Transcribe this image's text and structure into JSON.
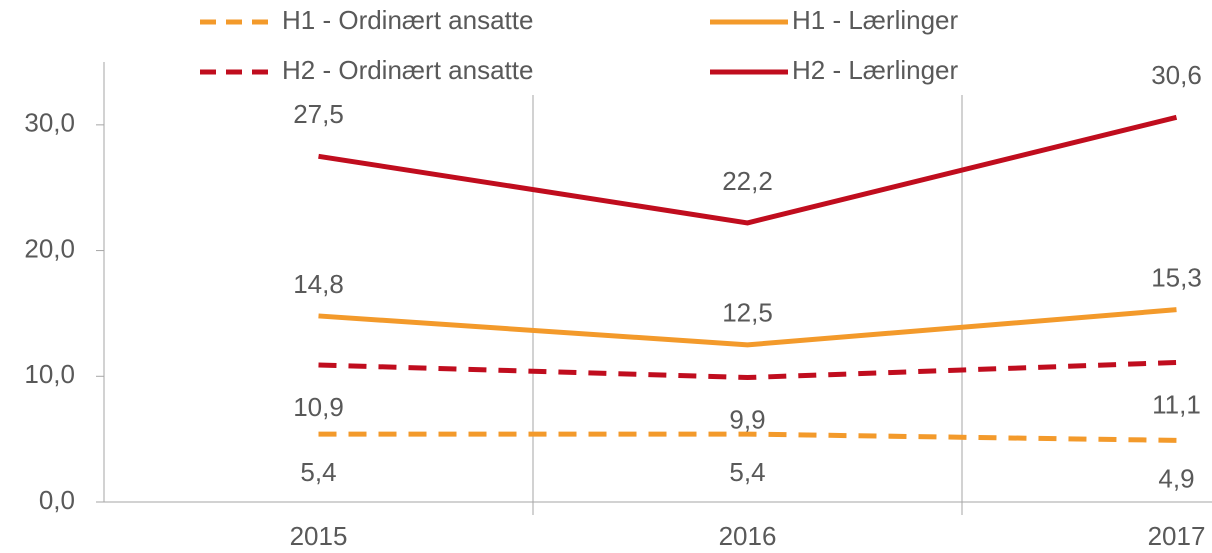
{
  "chart_data": {
    "type": "line",
    "categories": [
      "2015",
      "2016",
      "2017"
    ],
    "series": [
      {
        "name": "H1 - Ordinært ansatte",
        "color": "#f39a2b",
        "dashed": true,
        "values": [
          5.4,
          5.4,
          4.9
        ],
        "value_labels": [
          "5,4",
          "5,4",
          "4,9"
        ]
      },
      {
        "name": "H1 - Lærlinger",
        "color": "#f39a2b",
        "dashed": false,
        "values": [
          14.8,
          12.5,
          15.3
        ],
        "value_labels": [
          "14,8",
          "12,5",
          "15,3"
        ]
      },
      {
        "name": "H2 - Ordinært ansatte",
        "color": "#c00d1e",
        "dashed": true,
        "values": [
          10.9,
          9.9,
          11.1
        ],
        "value_labels": [
          "10,9",
          "9,9",
          "11,1"
        ]
      },
      {
        "name": "H2 - Lærlinger",
        "color": "#c00d1e",
        "dashed": false,
        "values": [
          27.5,
          22.2,
          30.6
        ],
        "value_labels": [
          "27,5",
          "22,2",
          "30,6"
        ]
      }
    ],
    "ylim": [
      0,
      35
    ],
    "yticks": [
      {
        "value": 0,
        "label": "0,0"
      },
      {
        "value": 10,
        "label": "10,0"
      },
      {
        "value": 20,
        "label": "20,0"
      },
      {
        "value": 30,
        "label": "30,0"
      }
    ],
    "legend": "top"
  }
}
